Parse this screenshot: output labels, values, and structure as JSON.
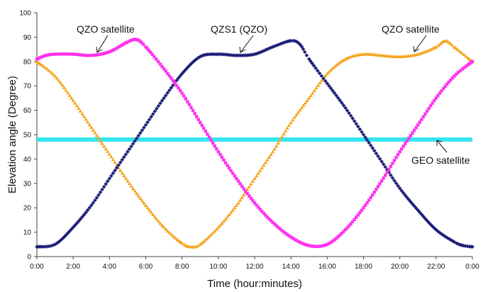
{
  "chart_data": {
    "type": "line",
    "xlabel": "Time (hour:minutes)",
    "ylabel": "Elevation angle (Degree)",
    "xlim": [
      0,
      24
    ],
    "ylim": [
      0,
      100
    ],
    "grid": false,
    "x_ticks": [
      "0:00",
      "2:00",
      "4:00",
      "6:00",
      "8:00",
      "10:00",
      "12:00",
      "14:00",
      "16:00",
      "18:00",
      "20:00",
      "22:00",
      "0:00"
    ],
    "y_ticks": [
      "0",
      "10",
      "20",
      "30",
      "40",
      "50",
      "60",
      "70",
      "80",
      "90",
      "100"
    ],
    "series": [
      {
        "color": "#ff33ee",
        "marker": "square",
        "x": [
          0,
          0.5,
          1,
          2,
          3,
          4,
          5,
          5.5,
          6,
          7,
          8,
          9,
          10,
          11,
          12,
          13,
          14,
          15,
          16,
          17,
          18,
          19,
          20,
          21,
          22,
          23,
          24
        ],
        "y": [
          81,
          82.5,
          83,
          83,
          82.5,
          84,
          88,
          89,
          86,
          77,
          67,
          55,
          43,
          32,
          22,
          14,
          8,
          4.5,
          5,
          11,
          20,
          31,
          43,
          54,
          65,
          74,
          80
        ]
      },
      {
        "color": "#1e1f7a",
        "marker": "diamond",
        "x": [
          0,
          1,
          2,
          3,
          4,
          5,
          6,
          7,
          8,
          9,
          10,
          11,
          12,
          13,
          14,
          14.5,
          15,
          16,
          17,
          18,
          19,
          20,
          21,
          22,
          23,
          23.5,
          24
        ],
        "y": [
          4,
          5,
          12,
          21,
          32,
          43,
          54,
          65,
          75,
          82,
          83,
          82.5,
          83,
          86,
          88.5,
          87,
          81,
          71,
          61,
          50,
          39,
          28,
          19,
          11,
          6,
          4.5,
          4
        ]
      },
      {
        "color": "#f5a623",
        "marker": "triangle",
        "x": [
          0,
          1,
          2,
          3,
          4,
          5,
          6,
          7,
          8,
          8.5,
          9,
          10,
          11,
          12,
          13,
          14,
          15,
          16,
          17,
          18,
          19,
          20,
          21,
          22,
          22.5,
          23,
          24
        ],
        "y": [
          80,
          74,
          64,
          53,
          42,
          31,
          21,
          12,
          5.5,
          4,
          5,
          12,
          21,
          32,
          43,
          55,
          65,
          75,
          81,
          83,
          82.5,
          82,
          83,
          86,
          88.5,
          86,
          80
        ]
      },
      {
        "color": "#33e6ef",
        "marker": "none",
        "x": [
          0,
          24
        ],
        "y": [
          48,
          48
        ]
      }
    ],
    "annotations": [
      {
        "text": "QZO satellite",
        "series_index": 0,
        "x": 3.2,
        "y": 82.5
      },
      {
        "text": "QZS1 (QZO)",
        "series_index": 1,
        "x": 11,
        "y": 82.5
      },
      {
        "text": "QZO satellite",
        "series_index": 2,
        "x": 20.7,
        "y": 82
      },
      {
        "text": "GEO satellite",
        "series_index": 3,
        "x": 20.6,
        "y": 48
      }
    ]
  }
}
